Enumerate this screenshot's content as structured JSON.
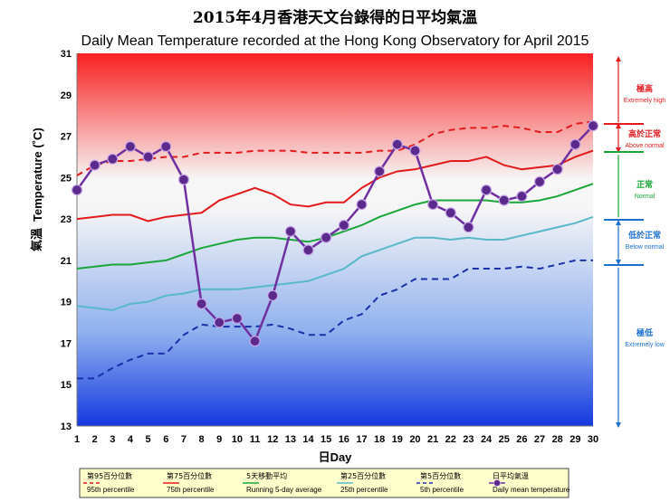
{
  "chart_data": {
    "type": "line",
    "title": "2015年4月香港天文台錄得的日平均氣溫",
    "subtitle": "Daily Mean Temperature recorded at the Hong Kong Observatory for April 2015",
    "xlabel": "日Day",
    "ylabel_cn": "氣溫",
    "ylabel_en": "Temperature (˚C)",
    "ylim": [
      13,
      31
    ],
    "yticks": [
      13,
      15,
      17,
      19,
      21,
      23,
      25,
      27,
      29,
      31
    ],
    "x": [
      1,
      2,
      3,
      4,
      5,
      6,
      7,
      8,
      9,
      10,
      11,
      12,
      13,
      14,
      15,
      16,
      17,
      18,
      19,
      20,
      21,
      22,
      23,
      24,
      25,
      26,
      27,
      28,
      29,
      30
    ],
    "series": [
      {
        "name_cn": "第95百分位數",
        "name_en": "95th percentile",
        "color": "#e31a1c",
        "style": "dashed",
        "values": [
          25.1,
          25.6,
          25.8,
          25.8,
          25.9,
          26.0,
          26.0,
          26.2,
          26.2,
          26.2,
          26.3,
          26.3,
          26.3,
          26.2,
          26.2,
          26.2,
          26.2,
          26.3,
          26.3,
          26.6,
          27.1,
          27.3,
          27.4,
          27.4,
          27.5,
          27.4,
          27.2,
          27.2,
          27.6,
          27.7
        ]
      },
      {
        "name_cn": "第75百分位數",
        "name_en": "75th percentile",
        "color": "#e31a1c",
        "style": "solid",
        "values": [
          23.0,
          23.1,
          23.2,
          23.2,
          22.9,
          23.1,
          23.2,
          23.3,
          23.9,
          24.2,
          24.5,
          24.2,
          23.7,
          23.6,
          23.8,
          23.8,
          24.5,
          25.0,
          25.3,
          25.4,
          25.6,
          25.8,
          25.8,
          26.0,
          25.6,
          25.4,
          25.5,
          25.6,
          26.0,
          26.3
        ]
      },
      {
        "name_cn": "5天移動平均",
        "name_en": "Running 5-day average",
        "color": "#19a739",
        "style": "solid",
        "values": [
          20.6,
          20.7,
          20.8,
          20.8,
          20.9,
          21.0,
          21.3,
          21.6,
          21.8,
          22.0,
          22.1,
          22.1,
          22.0,
          21.9,
          22.1,
          22.4,
          22.7,
          23.1,
          23.4,
          23.7,
          23.9,
          23.9,
          23.9,
          23.9,
          23.8,
          23.8,
          23.9,
          24.1,
          24.4,
          24.7
        ]
      },
      {
        "name_cn": "第25百分位數",
        "name_en": "25th percentile",
        "color": "#58b8c9",
        "style": "solid",
        "values": [
          18.8,
          18.7,
          18.6,
          18.9,
          19.0,
          19.3,
          19.4,
          19.6,
          19.6,
          19.6,
          19.7,
          19.8,
          19.9,
          20.0,
          20.3,
          20.6,
          21.2,
          21.5,
          21.8,
          22.1,
          22.1,
          22.0,
          22.1,
          22.0,
          22.0,
          22.2,
          22.4,
          22.6,
          22.8,
          23.1
        ]
      },
      {
        "name_cn": "第5百分位數",
        "name_en": "5th percentile",
        "color": "#1830a8",
        "style": "dashed",
        "values": [
          15.3,
          15.3,
          15.8,
          16.2,
          16.5,
          16.5,
          17.4,
          17.9,
          17.8,
          17.8,
          17.8,
          17.9,
          17.7,
          17.4,
          17.4,
          18.1,
          18.4,
          19.3,
          19.6,
          20.1,
          20.1,
          20.1,
          20.6,
          20.6,
          20.6,
          20.7,
          20.6,
          20.8,
          21.0,
          21.0
        ]
      },
      {
        "name_cn": "日平均氣溫",
        "name_en": "Daily mean temperature",
        "color": "#7030a0",
        "style": "markers",
        "values": [
          24.4,
          25.6,
          25.9,
          26.5,
          26.0,
          26.5,
          24.9,
          18.9,
          18.0,
          18.2,
          17.1,
          19.3,
          22.4,
          21.5,
          22.1,
          22.7,
          23.7,
          25.3,
          26.6,
          26.3,
          23.7,
          23.3,
          22.6,
          24.4,
          23.9,
          24.1,
          24.8,
          25.4,
          26.6,
          27.5
        ]
      }
    ],
    "categories": [
      {
        "cn": "極高",
        "en": "Extremely high",
        "color": "#e31a1c"
      },
      {
        "cn": "高於正常",
        "en": "Above normal",
        "color": "#e31a1c"
      },
      {
        "cn": "正常",
        "en": "Normal",
        "color": "#19a739"
      },
      {
        "cn": "低於正常",
        "en": "Below normal",
        "color": "#1c6fd0"
      },
      {
        "cn": "極低",
        "en": "Extremely low",
        "color": "#1c6fd0"
      }
    ],
    "grid": false,
    "legend_position": "bottom"
  }
}
